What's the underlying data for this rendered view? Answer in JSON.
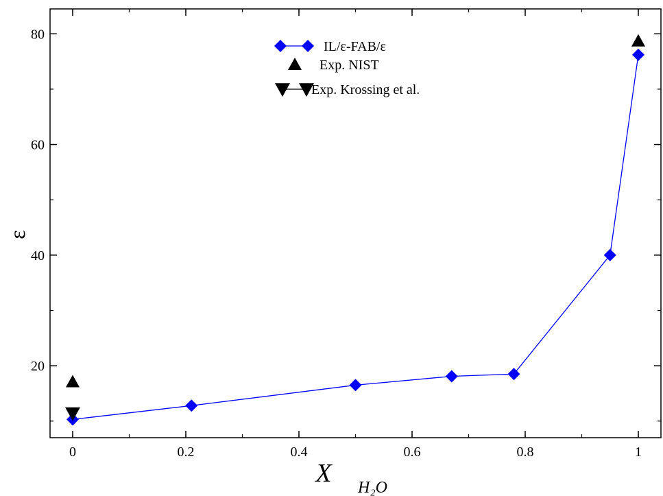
{
  "chart_data": {
    "type": "line",
    "xlabel": "X",
    "xlabel_subscript": "H₂O",
    "ylabel": "ε",
    "xlim": [
      -0.04,
      1.04
    ],
    "ylim": [
      7,
      84.5
    ],
    "x_ticks": [
      0,
      0.2,
      0.4,
      0.6,
      0.8,
      1
    ],
    "x_tick_labels": [
      "0",
      "0.2",
      "0.4",
      "0.6",
      "0.8",
      "1"
    ],
    "y_ticks": [
      20,
      40,
      60,
      80
    ],
    "y_tick_labels": [
      "20",
      "40",
      "60",
      "80"
    ],
    "grid": false,
    "legend_position": "top-center",
    "series": [
      {
        "name": "IL/ε-FAB/ε",
        "marker": "diamond",
        "color": "#0000ff",
        "line": true,
        "x": [
          0,
          0.21,
          0.5,
          0.67,
          0.78,
          0.95,
          1.0
        ],
        "y": [
          10.3,
          12.8,
          16.5,
          18.1,
          18.5,
          40.0,
          76.2
        ]
      },
      {
        "name": "Exp. NIST",
        "marker": "triangle-up",
        "color": "#000000",
        "line": false,
        "x": [
          0,
          1.0
        ],
        "y": [
          17.1,
          78.7
        ]
      },
      {
        "name": "Exp. Krossing et al.",
        "marker": "triangle-down",
        "color": "#000000",
        "line": false,
        "x": [
          0
        ],
        "y": [
          11.4
        ]
      }
    ]
  }
}
